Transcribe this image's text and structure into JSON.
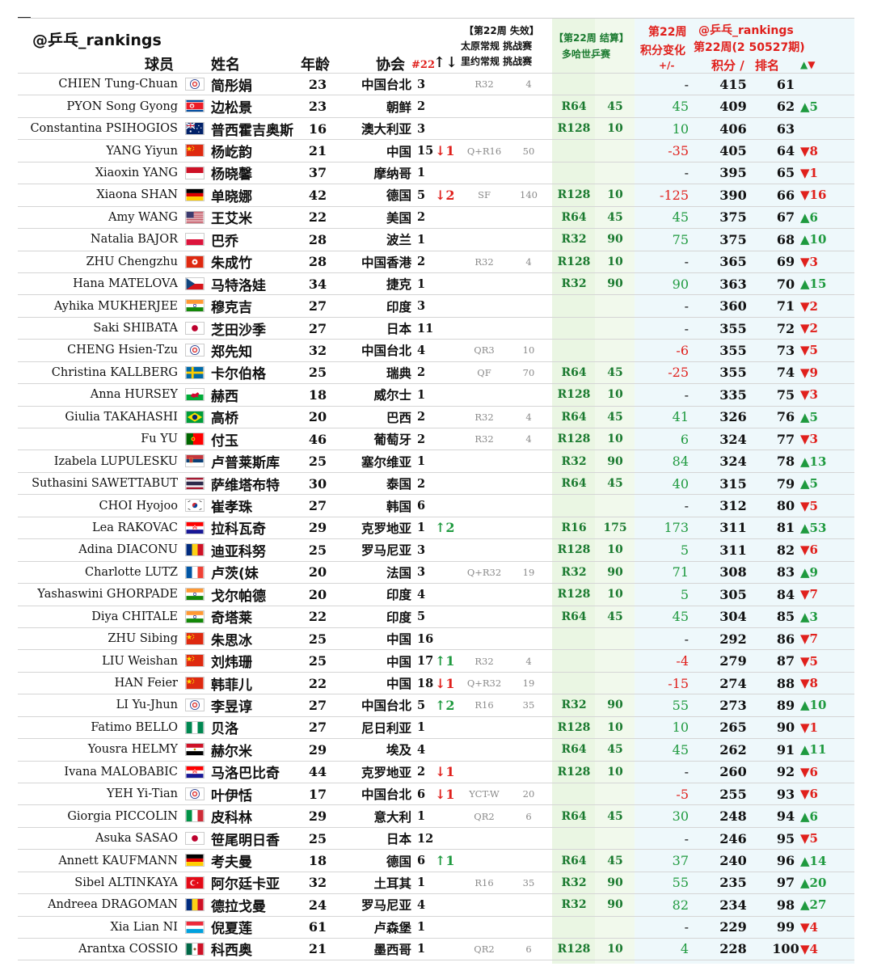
{
  "header": {
    "brand": "@乒乓_rankings",
    "col_player": "球员",
    "col_name": "姓名",
    "col_age": "年龄",
    "col_assoc": "协会",
    "col_rank22": "#22",
    "col_rank22_arrows": "↑↓",
    "drop_title": "【第22周 失效】",
    "drop_line1": "太原常规 挑战赛",
    "drop_line2": "里约常规 挑战赛",
    "result_title": "【第22周 结算】",
    "result_event": "多哈世乒赛",
    "change_title1": "第22周",
    "change_title2": "积分变化",
    "change_title3": "+/-",
    "rank_brand": "@乒乓_rankings",
    "rank_week": "第22周(2 50527期)",
    "rank_points_label": "积分 /",
    "rank_label": "排名",
    "rank_move_label": "▲▼"
  },
  "rows": [
    {
      "en": "CHIEN Tung-Chuan",
      "flag": "tpe",
      "cn": "简彤娟",
      "age": "23",
      "assoc": "中国台北",
      "rank22": "3",
      "arrow": "",
      "arrow_dir": "",
      "drop_round": "R32",
      "drop_pts": "4",
      "round": "",
      "round_pts": "",
      "change": "-",
      "points": "415",
      "rank": "61",
      "move": ""
    },
    {
      "en": "PYON Song Gyong",
      "flag": "prk",
      "cn": "边松景",
      "age": "23",
      "assoc": "朝鲜",
      "rank22": "2",
      "arrow": "",
      "arrow_dir": "",
      "drop_round": "",
      "drop_pts": "",
      "round": "R64",
      "round_pts": "45",
      "change": "45",
      "points": "409",
      "rank": "62",
      "move": "▲5"
    },
    {
      "en": "Constantina PSIHOGIOS",
      "flag": "aus",
      "cn": "普西霍吉奥斯",
      "age": "16",
      "assoc": "澳大利亚",
      "rank22": "3",
      "arrow": "",
      "arrow_dir": "",
      "drop_round": "",
      "drop_pts": "",
      "round": "R128",
      "round_pts": "10",
      "change": "10",
      "points": "406",
      "rank": "63",
      "move": ""
    },
    {
      "en": "YANG Yiyun",
      "flag": "chn",
      "cn": "杨屹韵",
      "age": "21",
      "assoc": "中国",
      "rank22": "15",
      "arrow": "↓1",
      "arrow_dir": "down",
      "drop_round": "Q+R16",
      "drop_pts": "50",
      "round": "",
      "round_pts": "",
      "change": "-35",
      "points": "405",
      "rank": "64",
      "move": "▼8"
    },
    {
      "en": "Xiaoxin YANG",
      "flag": "mon",
      "cn": "杨晓馨",
      "age": "37",
      "assoc": "摩纳哥",
      "rank22": "1",
      "arrow": "",
      "arrow_dir": "",
      "drop_round": "",
      "drop_pts": "",
      "round": "",
      "round_pts": "",
      "change": "-",
      "points": "395",
      "rank": "65",
      "move": "▼1"
    },
    {
      "en": "Xiaona SHAN",
      "flag": "ger",
      "cn": "单晓娜",
      "age": "42",
      "assoc": "德国",
      "rank22": "5",
      "arrow": "↓2",
      "arrow_dir": "down",
      "drop_round": "SF",
      "drop_pts": "140",
      "round": "R128",
      "round_pts": "10",
      "change": "-125",
      "points": "390",
      "rank": "66",
      "move": "▼16"
    },
    {
      "en": "Amy WANG",
      "flag": "usa",
      "cn": "王艾米",
      "age": "22",
      "assoc": "美国",
      "rank22": "2",
      "arrow": "",
      "arrow_dir": "",
      "drop_round": "",
      "drop_pts": "",
      "round": "R64",
      "round_pts": "45",
      "change": "45",
      "points": "375",
      "rank": "67",
      "move": "▲6"
    },
    {
      "en": "Natalia BAJOR",
      "flag": "pol",
      "cn": "巴乔",
      "age": "28",
      "assoc": "波兰",
      "rank22": "1",
      "arrow": "",
      "arrow_dir": "",
      "drop_round": "",
      "drop_pts": "",
      "round": "R32",
      "round_pts": "90",
      "change": "75",
      "points": "375",
      "rank": "68",
      "move": "▲10"
    },
    {
      "en": "ZHU Chengzhu",
      "flag": "hkg",
      "cn": "朱成竹",
      "age": "28",
      "assoc": "中国香港",
      "rank22": "2",
      "arrow": "",
      "arrow_dir": "",
      "drop_round": "R32",
      "drop_pts": "4",
      "round": "R128",
      "round_pts": "10",
      "change": "-",
      "points": "365",
      "rank": "69",
      "move": "▼3"
    },
    {
      "en": "Hana MATELOVA",
      "flag": "cze",
      "cn": "马特洛娃",
      "age": "34",
      "assoc": "捷克",
      "rank22": "1",
      "arrow": "",
      "arrow_dir": "",
      "drop_round": "",
      "drop_pts": "",
      "round": "R32",
      "round_pts": "90",
      "change": "90",
      "points": "363",
      "rank": "70",
      "move": "▲15"
    },
    {
      "en": "Ayhika MUKHERJEE",
      "flag": "ind",
      "cn": "穆克吉",
      "age": "27",
      "assoc": "印度",
      "rank22": "3",
      "arrow": "",
      "arrow_dir": "",
      "drop_round": "",
      "drop_pts": "",
      "round": "",
      "round_pts": "",
      "change": "-",
      "points": "360",
      "rank": "71",
      "move": "▼2"
    },
    {
      "en": "Saki SHIBATA",
      "flag": "jpn",
      "cn": "芝田沙季",
      "age": "27",
      "assoc": "日本",
      "rank22": "11",
      "arrow": "",
      "arrow_dir": "",
      "drop_round": "",
      "drop_pts": "",
      "round": "",
      "round_pts": "",
      "change": "-",
      "points": "355",
      "rank": "72",
      "move": "▼2"
    },
    {
      "en": "CHENG Hsien-Tzu",
      "flag": "tpe",
      "cn": "郑先知",
      "age": "32",
      "assoc": "中国台北",
      "rank22": "4",
      "arrow": "",
      "arrow_dir": "",
      "drop_round": "QR3",
      "drop_pts": "10",
      "round": "",
      "round_pts": "",
      "change": "-6",
      "points": "355",
      "rank": "73",
      "move": "▼5"
    },
    {
      "en": "Christina KALLBERG",
      "flag": "swe",
      "cn": "卡尔伯格",
      "age": "25",
      "assoc": "瑞典",
      "rank22": "2",
      "arrow": "",
      "arrow_dir": "",
      "drop_round": "QF",
      "drop_pts": "70",
      "round": "R64",
      "round_pts": "45",
      "change": "-25",
      "points": "355",
      "rank": "74",
      "move": "▼9"
    },
    {
      "en": "Anna HURSEY",
      "flag": "wal",
      "cn": "赫西",
      "age": "18",
      "assoc": "威尔士",
      "rank22": "1",
      "arrow": "",
      "arrow_dir": "",
      "drop_round": "",
      "drop_pts": "",
      "round": "R128",
      "round_pts": "10",
      "change": "-",
      "points": "335",
      "rank": "75",
      "move": "▼3"
    },
    {
      "en": "Giulia TAKAHASHI",
      "flag": "bra",
      "cn": "高桥",
      "age": "20",
      "assoc": "巴西",
      "rank22": "2",
      "arrow": "",
      "arrow_dir": "",
      "drop_round": "R32",
      "drop_pts": "4",
      "round": "R64",
      "round_pts": "45",
      "change": "41",
      "points": "326",
      "rank": "76",
      "move": "▲5"
    },
    {
      "en": "Fu YU",
      "flag": "por",
      "cn": "付玉",
      "age": "46",
      "assoc": "葡萄牙",
      "rank22": "2",
      "arrow": "",
      "arrow_dir": "",
      "drop_round": "R32",
      "drop_pts": "4",
      "round": "R128",
      "round_pts": "10",
      "change": "6",
      "points": "324",
      "rank": "77",
      "move": "▼3"
    },
    {
      "en": "Izabela LUPULESKU",
      "flag": "srb",
      "cn": "卢普莱斯库",
      "age": "25",
      "assoc": "塞尔维亚",
      "rank22": "1",
      "arrow": "",
      "arrow_dir": "",
      "drop_round": "",
      "drop_pts": "",
      "round": "R32",
      "round_pts": "90",
      "change": "84",
      "points": "324",
      "rank": "78",
      "move": "▲13"
    },
    {
      "en": "Suthasini SAWETTABUT",
      "flag": "tha",
      "cn": "萨维塔布特",
      "age": "30",
      "assoc": "泰国",
      "rank22": "2",
      "arrow": "",
      "arrow_dir": "",
      "drop_round": "",
      "drop_pts": "",
      "round": "R64",
      "round_pts": "45",
      "change": "40",
      "points": "315",
      "rank": "79",
      "move": "▲5"
    },
    {
      "en": "CHOI Hyojoo",
      "flag": "kor",
      "cn": "崔孝珠",
      "age": "27",
      "assoc": "韩国",
      "rank22": "6",
      "arrow": "",
      "arrow_dir": "",
      "drop_round": "",
      "drop_pts": "",
      "round": "",
      "round_pts": "",
      "change": "-",
      "points": "312",
      "rank": "80",
      "move": "▼5"
    },
    {
      "en": "Lea RAKOVAC",
      "flag": "cro",
      "cn": "拉科瓦奇",
      "age": "29",
      "assoc": "克罗地亚",
      "rank22": "1",
      "arrow": "↑2",
      "arrow_dir": "up",
      "drop_round": "",
      "drop_pts": "",
      "round": "R16",
      "round_pts": "175",
      "change": "173",
      "points": "311",
      "rank": "81",
      "move": "▲53"
    },
    {
      "en": "Adina DIACONU",
      "flag": "rou",
      "cn": "迪亚科努",
      "age": "25",
      "assoc": "罗马尼亚",
      "rank22": "3",
      "arrow": "",
      "arrow_dir": "",
      "drop_round": "",
      "drop_pts": "",
      "round": "R128",
      "round_pts": "10",
      "change": "5",
      "points": "311",
      "rank": "82",
      "move": "▼6"
    },
    {
      "en": "Charlotte LUTZ",
      "flag": "fra",
      "cn": "卢茨(妹",
      "age": "20",
      "assoc": "法国",
      "rank22": "3",
      "arrow": "",
      "arrow_dir": "",
      "drop_round": "Q+R32",
      "drop_pts": "19",
      "round": "R32",
      "round_pts": "90",
      "change": "71",
      "points": "308",
      "rank": "83",
      "move": "▲9"
    },
    {
      "en": "Yashaswini GHORPADE",
      "flag": "ind",
      "cn": "戈尔帕德",
      "age": "20",
      "assoc": "印度",
      "rank22": "4",
      "arrow": "",
      "arrow_dir": "",
      "drop_round": "",
      "drop_pts": "",
      "round": "R128",
      "round_pts": "10",
      "change": "5",
      "points": "305",
      "rank": "84",
      "move": "▼7"
    },
    {
      "en": "Diya CHITALE",
      "flag": "ind",
      "cn": "奇塔莱",
      "age": "22",
      "assoc": "印度",
      "rank22": "5",
      "arrow": "",
      "arrow_dir": "",
      "drop_round": "",
      "drop_pts": "",
      "round": "R64",
      "round_pts": "45",
      "change": "45",
      "points": "304",
      "rank": "85",
      "move": "▲3"
    },
    {
      "en": "ZHU Sibing",
      "flag": "chn",
      "cn": "朱思冰",
      "age": "25",
      "assoc": "中国",
      "rank22": "16",
      "arrow": "",
      "arrow_dir": "",
      "drop_round": "",
      "drop_pts": "",
      "round": "",
      "round_pts": "",
      "change": "-",
      "points": "292",
      "rank": "86",
      "move": "▼7"
    },
    {
      "en": "LIU Weishan",
      "flag": "chn",
      "cn": "刘炜珊",
      "age": "25",
      "assoc": "中国",
      "rank22": "17",
      "arrow": "↑1",
      "arrow_dir": "up",
      "drop_round": "R32",
      "drop_pts": "4",
      "round": "",
      "round_pts": "",
      "change": "-4",
      "points": "279",
      "rank": "87",
      "move": "▼5"
    },
    {
      "en": "HAN Feier",
      "flag": "chn",
      "cn": "韩菲儿",
      "age": "22",
      "assoc": "中国",
      "rank22": "18",
      "arrow": "↓1",
      "arrow_dir": "down",
      "drop_round": "Q+R32",
      "drop_pts": "19",
      "round": "",
      "round_pts": "",
      "change": "-15",
      "points": "274",
      "rank": "88",
      "move": "▼8"
    },
    {
      "en": "LI Yu-Jhun",
      "flag": "tpe",
      "cn": "李昱谆",
      "age": "27",
      "assoc": "中国台北",
      "rank22": "5",
      "arrow": "↑2",
      "arrow_dir": "up",
      "drop_round": "R16",
      "drop_pts": "35",
      "round": "R32",
      "round_pts": "90",
      "change": "55",
      "points": "273",
      "rank": "89",
      "move": "▲10"
    },
    {
      "en": "Fatimo BELLO",
      "flag": "ngr",
      "cn": "贝洛",
      "age": "27",
      "assoc": "尼日利亚",
      "rank22": "1",
      "arrow": "",
      "arrow_dir": "",
      "drop_round": "",
      "drop_pts": "",
      "round": "R128",
      "round_pts": "10",
      "change": "10",
      "points": "265",
      "rank": "90",
      "move": "▼1"
    },
    {
      "en": "Yousra HELMY",
      "flag": "egy",
      "cn": "赫尔米",
      "age": "29",
      "assoc": "埃及",
      "rank22": "4",
      "arrow": "",
      "arrow_dir": "",
      "drop_round": "",
      "drop_pts": "",
      "round": "R64",
      "round_pts": "45",
      "change": "45",
      "points": "262",
      "rank": "91",
      "move": "▲11"
    },
    {
      "en": "Ivana MALOBABIC",
      "flag": "cro",
      "cn": "马洛巴比奇",
      "age": "44",
      "assoc": "克罗地亚",
      "rank22": "2",
      "arrow": "↓1",
      "arrow_dir": "down",
      "drop_round": "",
      "drop_pts": "",
      "round": "R128",
      "round_pts": "10",
      "change": "-",
      "points": "260",
      "rank": "92",
      "move": "▼6"
    },
    {
      "en": "YEH Yi-Tian",
      "flag": "tpe",
      "cn": "叶伊恬",
      "age": "17",
      "assoc": "中国台北",
      "rank22": "6",
      "arrow": "↓1",
      "arrow_dir": "down",
      "drop_round": "YCT-W",
      "drop_pts": "20",
      "round": "",
      "round_pts": "",
      "change": "-5",
      "points": "255",
      "rank": "93",
      "move": "▼6"
    },
    {
      "en": "Giorgia PICCOLIN",
      "flag": "ita",
      "cn": "皮科林",
      "age": "29",
      "assoc": "意大利",
      "rank22": "1",
      "arrow": "",
      "arrow_dir": "",
      "drop_round": "QR2",
      "drop_pts": "6",
      "round": "R64",
      "round_pts": "45",
      "change": "30",
      "points": "248",
      "rank": "94",
      "move": "▲6"
    },
    {
      "en": "Asuka SASAO",
      "flag": "jpn",
      "cn": "笹尾明日香",
      "age": "25",
      "assoc": "日本",
      "rank22": "12",
      "arrow": "",
      "arrow_dir": "",
      "drop_round": "",
      "drop_pts": "",
      "round": "",
      "round_pts": "",
      "change": "-",
      "points": "246",
      "rank": "95",
      "move": "▼5"
    },
    {
      "en": "Annett KAUFMANN",
      "flag": "ger",
      "cn": "考夫曼",
      "age": "18",
      "assoc": "德国",
      "rank22": "6",
      "arrow": "↑1",
      "arrow_dir": "up",
      "drop_round": "",
      "drop_pts": "",
      "round": "R64",
      "round_pts": "45",
      "change": "37",
      "points": "240",
      "rank": "96",
      "move": "▲14"
    },
    {
      "en": "Sibel ALTINKAYA",
      "flag": "tur",
      "cn": "阿尔廷卡亚",
      "age": "32",
      "assoc": "土耳其",
      "rank22": "1",
      "arrow": "",
      "arrow_dir": "",
      "drop_round": "R16",
      "drop_pts": "35",
      "round": "R32",
      "round_pts": "90",
      "change": "55",
      "points": "235",
      "rank": "97",
      "move": "▲20"
    },
    {
      "en": "Andreea DRAGOMAN",
      "flag": "rou",
      "cn": "德拉戈曼",
      "age": "24",
      "assoc": "罗马尼亚",
      "rank22": "4",
      "arrow": "",
      "arrow_dir": "",
      "drop_round": "",
      "drop_pts": "",
      "round": "R32",
      "round_pts": "90",
      "change": "82",
      "points": "234",
      "rank": "98",
      "move": "▲27"
    },
    {
      "en": "Xia Lian NI",
      "flag": "lux",
      "cn": "倪夏莲",
      "age": "61",
      "assoc": "卢森堡",
      "rank22": "1",
      "arrow": "",
      "arrow_dir": "",
      "drop_round": "",
      "drop_pts": "",
      "round": "",
      "round_pts": "",
      "change": "-",
      "points": "229",
      "rank": "99",
      "move": "▼4"
    },
    {
      "en": "Arantxa COSSIO",
      "flag": "mex",
      "cn": "科西奥",
      "age": "21",
      "assoc": "墨西哥",
      "rank22": "1",
      "arrow": "",
      "arrow_dir": "",
      "drop_round": "QR2",
      "drop_pts": "6",
      "round": "R128",
      "round_pts": "10",
      "change": "4",
      "points": "228",
      "rank": "100",
      "move": "▼4"
    }
  ]
}
